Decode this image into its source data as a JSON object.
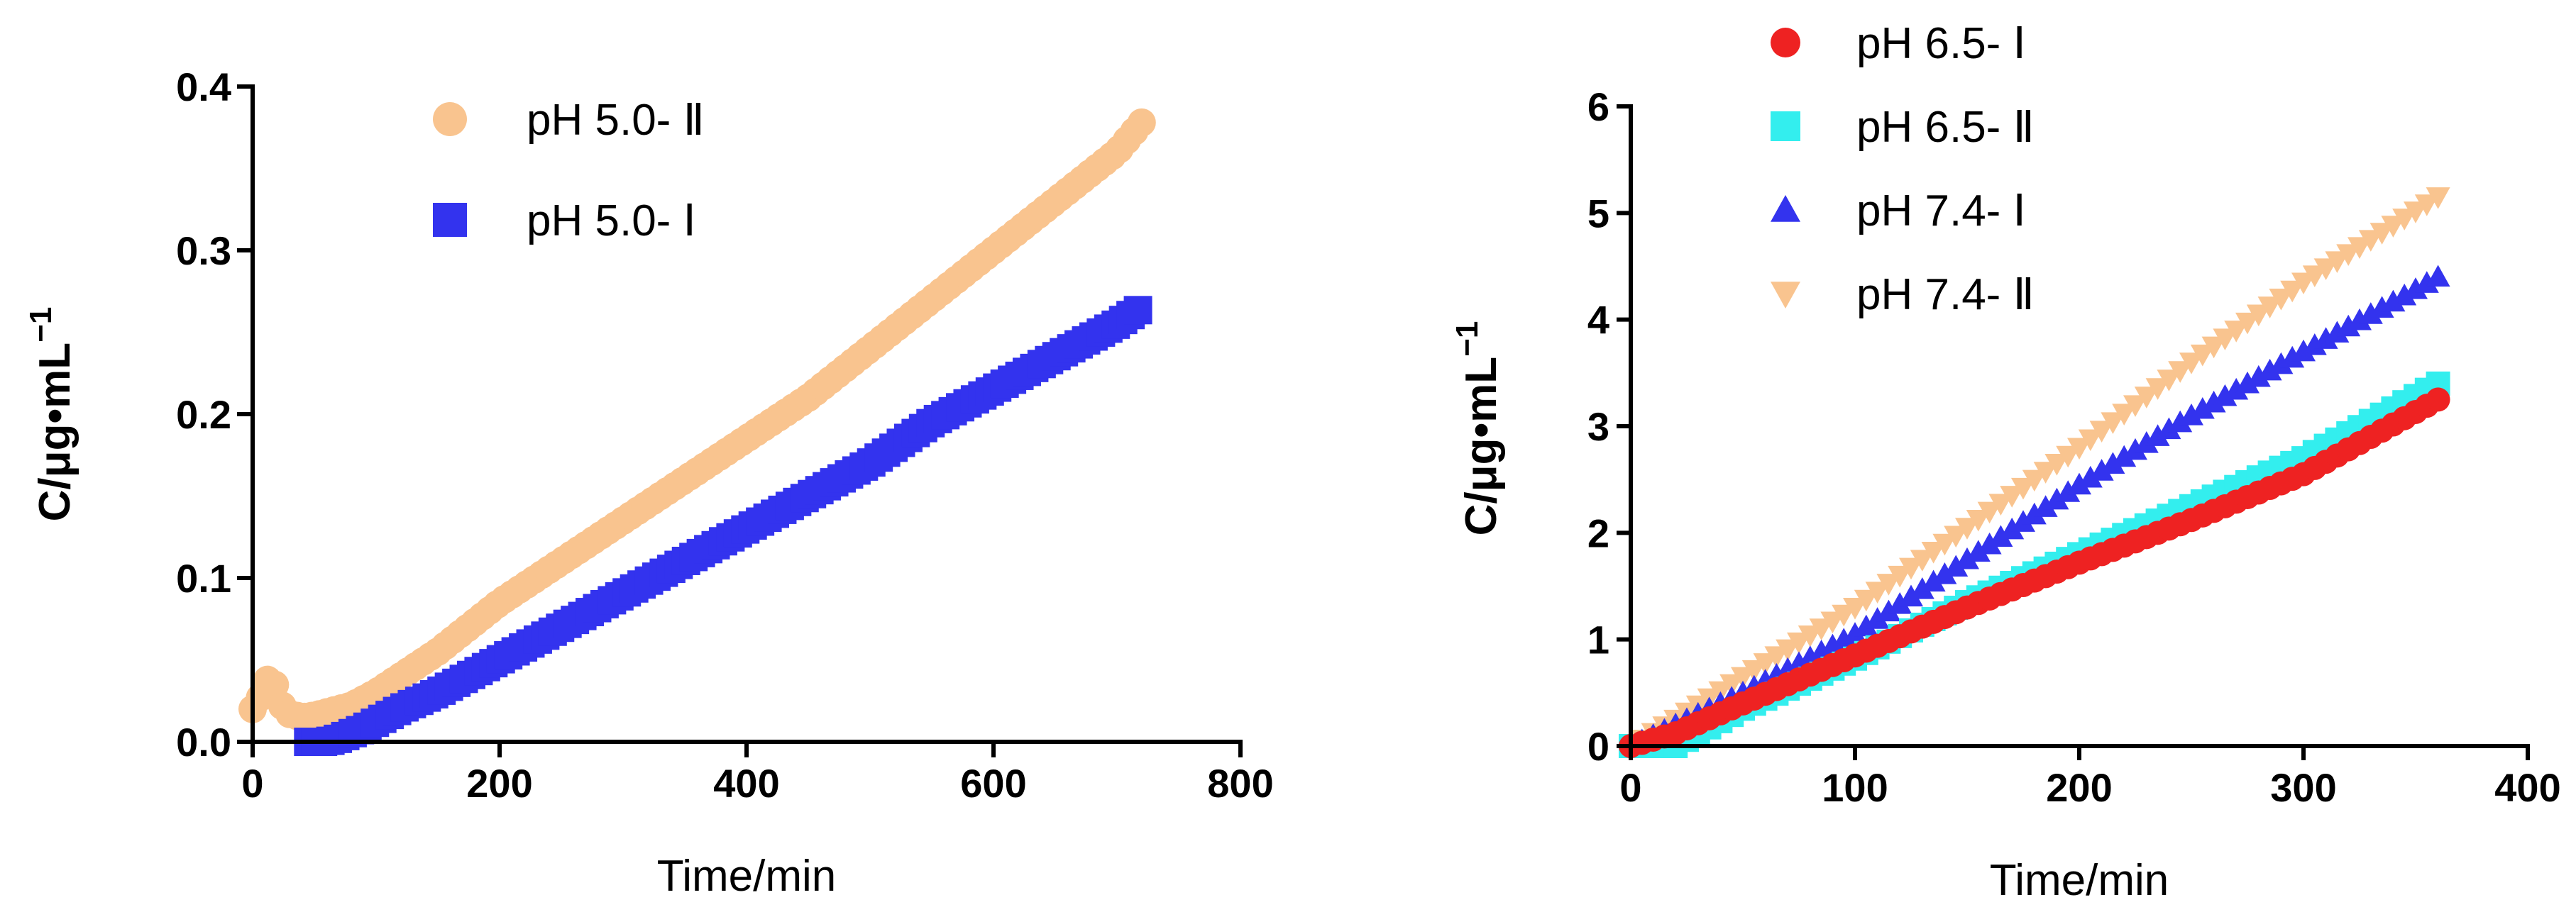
{
  "chart_data": [
    {
      "type": "scatter",
      "xlabel": "Time/min",
      "ylabel": "C/μg•mL",
      "ylabel_sup": "−1",
      "xlim": [
        0,
        800
      ],
      "ylim": [
        0,
        0.4
      ],
      "xticks": [
        0,
        200,
        400,
        600,
        800
      ],
      "yticks": [
        0.0,
        0.1,
        0.2,
        0.3,
        0.4
      ],
      "xtick_labels": [
        "0",
        "200",
        "400",
        "600",
        "800"
      ],
      "ytick_labels": [
        "0.0",
        "0.1",
        "0.2",
        "0.3",
        "0.4"
      ],
      "legend_position": "top",
      "series": [
        {
          "name": "pH 5.0- Ⅱ",
          "marker": "circle",
          "color": "#f9c48f",
          "x": [
            0,
            5,
            10,
            15,
            20,
            25,
            30,
            40,
            50,
            60,
            70,
            80,
            100,
            120,
            150,
            200,
            250,
            300,
            350,
            400,
            450,
            500,
            550,
            600,
            650,
            700,
            720
          ],
          "y": [
            0.02,
            0.025,
            0.035,
            0.042,
            0.03,
            0.02,
            0.017,
            0.015,
            0.016,
            0.018,
            0.02,
            0.022,
            0.03,
            0.04,
            0.055,
            0.085,
            0.11,
            0.135,
            0.16,
            0.185,
            0.21,
            0.24,
            0.27,
            0.3,
            0.33,
            0.36,
            0.378
          ]
        },
        {
          "name": "pH 5.0- Ⅰ",
          "marker": "square",
          "color": "#3333ee",
          "x": [
            45,
            50,
            60,
            70,
            80,
            90,
            100,
            120,
            150,
            200,
            250,
            300,
            350,
            400,
            450,
            500,
            550,
            600,
            650,
            700,
            720
          ],
          "y": [
            0.0,
            0.0,
            0.0,
            0.002,
            0.005,
            0.008,
            0.012,
            0.02,
            0.03,
            0.05,
            0.07,
            0.09,
            0.11,
            0.13,
            0.15,
            0.17,
            0.195,
            0.215,
            0.235,
            0.255,
            0.265
          ]
        }
      ]
    },
    {
      "type": "scatter",
      "xlabel": "Time/min",
      "ylabel": "C/μg•mL",
      "ylabel_sup": "−1",
      "xlim": [
        0,
        400
      ],
      "ylim": [
        0,
        6
      ],
      "xticks": [
        0,
        100,
        200,
        300,
        400
      ],
      "yticks": [
        0,
        1,
        2,
        3,
        4,
        5,
        6
      ],
      "xtick_labels": [
        "0",
        "100",
        "200",
        "300",
        "400"
      ],
      "ytick_labels": [
        "0",
        "1",
        "2",
        "3",
        "4",
        "5",
        "6"
      ],
      "legend_position": "top-left",
      "series": [
        {
          "name": "pH 6.5- Ⅰ",
          "marker": "circle",
          "color": "#ee2222",
          "x": [
            0,
            20,
            50,
            100,
            150,
            200,
            250,
            300,
            360
          ],
          "y": [
            0.0,
            0.12,
            0.4,
            0.85,
            1.3,
            1.72,
            2.12,
            2.55,
            3.25
          ]
        },
        {
          "name": "pH 6.5- Ⅱ",
          "marker": "square",
          "color": "#33eeee",
          "x": [
            0,
            20,
            50,
            100,
            150,
            200,
            250,
            300,
            360
          ],
          "y": [
            0.0,
            0.0,
            0.35,
            0.82,
            1.35,
            1.8,
            2.25,
            2.7,
            3.4
          ]
        },
        {
          "name": "pH 7.4- Ⅰ",
          "marker": "triangle-up",
          "color": "#3333ee",
          "x": [
            0,
            20,
            50,
            100,
            150,
            200,
            250,
            300,
            360
          ],
          "y": [
            0.0,
            0.2,
            0.5,
            1.05,
            1.75,
            2.45,
            3.1,
            3.7,
            4.4
          ]
        },
        {
          "name": "pH 7.4- Ⅱ",
          "marker": "triangle-down",
          "color": "#f9c48f",
          "x": [
            0,
            20,
            50,
            100,
            150,
            200,
            250,
            300,
            360
          ],
          "y": [
            0.0,
            0.25,
            0.65,
            1.3,
            2.05,
            2.8,
            3.6,
            4.35,
            5.15
          ]
        }
      ]
    }
  ]
}
